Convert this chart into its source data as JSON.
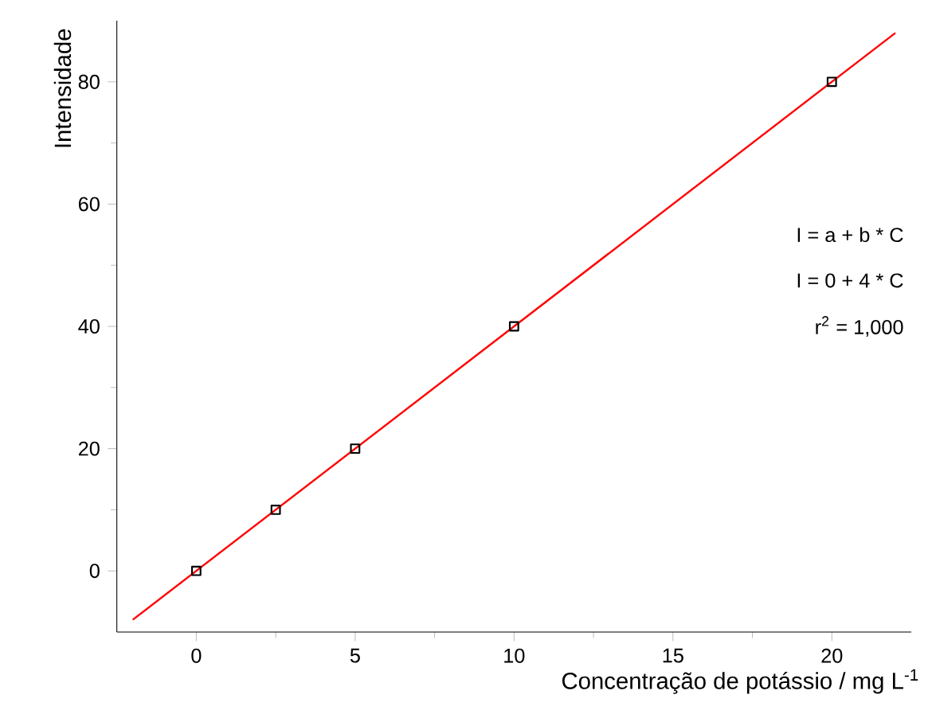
{
  "chart_data": {
    "type": "scatter",
    "xlabel": "Concentração de potássio / mg L$^{-1}$",
    "ylabel": "Intensidade",
    "xlim": [
      -2.5,
      22.5
    ],
    "ylim": [
      -10,
      90
    ],
    "xticks": [
      0,
      5,
      10,
      15,
      20
    ],
    "yticks": [
      0,
      20,
      40,
      60,
      80
    ],
    "marker": "square",
    "series": [
      {
        "color": "#000000",
        "x": [
          0,
          2.5,
          5,
          10,
          20
        ],
        "values": [
          0,
          10,
          20,
          40,
          80
        ]
      },
      {
        "type": "line",
        "color": "#ff0000",
        "marker": "none",
        "x": [
          -2,
          22
        ],
        "values": [
          -8,
          88
        ]
      }
    ],
    "annotations": [
      "I = a + b * C",
      "I = 0 + 4 * C",
      "r$^{2}$ = 1,000"
    ]
  }
}
